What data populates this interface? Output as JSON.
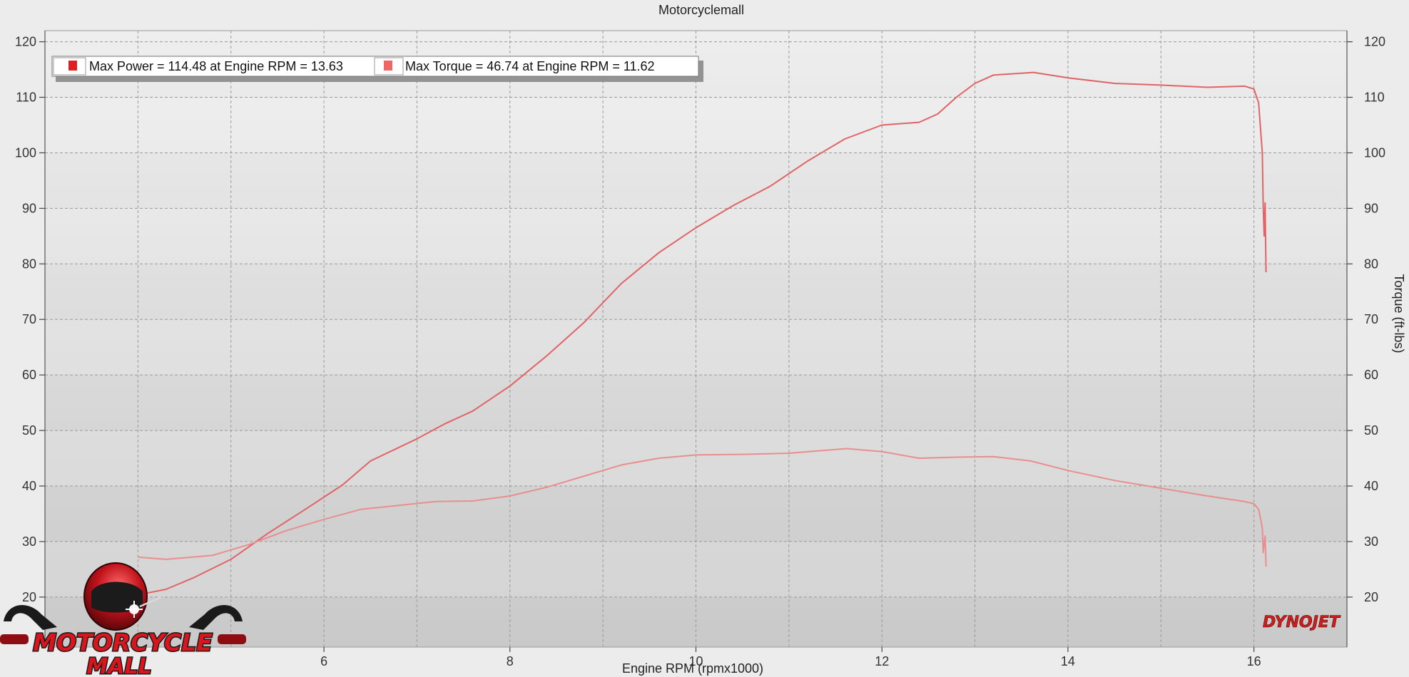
{
  "chart_data": {
    "type": "line",
    "title": "Motorcyclemall",
    "xlabel": "Engine RPM (rpmx1000)",
    "ylabel": "",
    "ylabel_right": "Torque (ft-lbs)",
    "xlim": [
      3.0,
      17.0
    ],
    "ylim": [
      11,
      122
    ],
    "x_ticks": [
      6,
      8,
      10,
      12,
      14,
      16
    ],
    "y_ticks": [
      20,
      30,
      40,
      50,
      60,
      70,
      80,
      90,
      100,
      110,
      120
    ],
    "grid": true,
    "legend_placement": "top-left",
    "series": [
      {
        "name": "Max Power = 114.48 at Engine RPM = 13.63",
        "color": "#e06466",
        "swatch": "#e02020",
        "points": [
          [
            4.0,
            20.4
          ],
          [
            4.3,
            21.4
          ],
          [
            4.6,
            23.5
          ],
          [
            5.0,
            26.8
          ],
          [
            5.4,
            31.5
          ],
          [
            5.8,
            35.8
          ],
          [
            6.2,
            40.2
          ],
          [
            6.5,
            44.5
          ],
          [
            7.0,
            48.5
          ],
          [
            7.3,
            51.2
          ],
          [
            7.6,
            53.5
          ],
          [
            8.0,
            58.0
          ],
          [
            8.4,
            63.5
          ],
          [
            8.8,
            69.5
          ],
          [
            9.0,
            73.0
          ],
          [
            9.2,
            76.5
          ],
          [
            9.6,
            82.0
          ],
          [
            10.0,
            86.5
          ],
          [
            10.4,
            90.5
          ],
          [
            10.8,
            94.0
          ],
          [
            11.2,
            98.5
          ],
          [
            11.6,
            102.5
          ],
          [
            12.0,
            105.0
          ],
          [
            12.4,
            105.5
          ],
          [
            12.6,
            107.0
          ],
          [
            12.8,
            110.0
          ],
          [
            13.0,
            112.5
          ],
          [
            13.2,
            114.0
          ],
          [
            13.63,
            114.48
          ],
          [
            14.0,
            113.5
          ],
          [
            14.5,
            112.5
          ],
          [
            15.0,
            112.2
          ],
          [
            15.5,
            111.8
          ],
          [
            15.9,
            112.0
          ],
          [
            16.0,
            111.5
          ],
          [
            16.05,
            109.0
          ],
          [
            16.09,
            100.0
          ],
          [
            16.1,
            90.0
          ],
          [
            16.11,
            85.0
          ],
          [
            16.12,
            91.0
          ],
          [
            16.13,
            78.5
          ]
        ]
      },
      {
        "name": "Max Torque = 46.74 at Engine RPM = 11.62",
        "color": "#e98e8f",
        "swatch": "#f06565",
        "points": [
          [
            4.0,
            27.2
          ],
          [
            4.3,
            26.8
          ],
          [
            4.8,
            27.5
          ],
          [
            5.2,
            29.5
          ],
          [
            5.6,
            32.0
          ],
          [
            6.0,
            34.0
          ],
          [
            6.4,
            35.8
          ],
          [
            6.8,
            36.5
          ],
          [
            7.2,
            37.2
          ],
          [
            7.6,
            37.3
          ],
          [
            8.0,
            38.2
          ],
          [
            8.4,
            39.8
          ],
          [
            8.8,
            41.8
          ],
          [
            9.2,
            43.8
          ],
          [
            9.6,
            45.0
          ],
          [
            10.0,
            45.6
          ],
          [
            10.5,
            45.7
          ],
          [
            11.0,
            45.9
          ],
          [
            11.62,
            46.74
          ],
          [
            12.0,
            46.2
          ],
          [
            12.4,
            45.0
          ],
          [
            12.8,
            45.2
          ],
          [
            13.2,
            45.3
          ],
          [
            13.6,
            44.5
          ],
          [
            14.0,
            42.8
          ],
          [
            14.5,
            41.0
          ],
          [
            15.0,
            39.6
          ],
          [
            15.5,
            38.2
          ],
          [
            15.9,
            37.2
          ],
          [
            16.0,
            36.8
          ],
          [
            16.05,
            35.8
          ],
          [
            16.09,
            32.5
          ],
          [
            16.1,
            28.0
          ],
          [
            16.12,
            31.0
          ],
          [
            16.13,
            25.5
          ]
        ]
      }
    ]
  },
  "watermark": {
    "line1": "MOTORCYCLE",
    "line2": "MALL",
    "brand": "DYNOJET"
  }
}
